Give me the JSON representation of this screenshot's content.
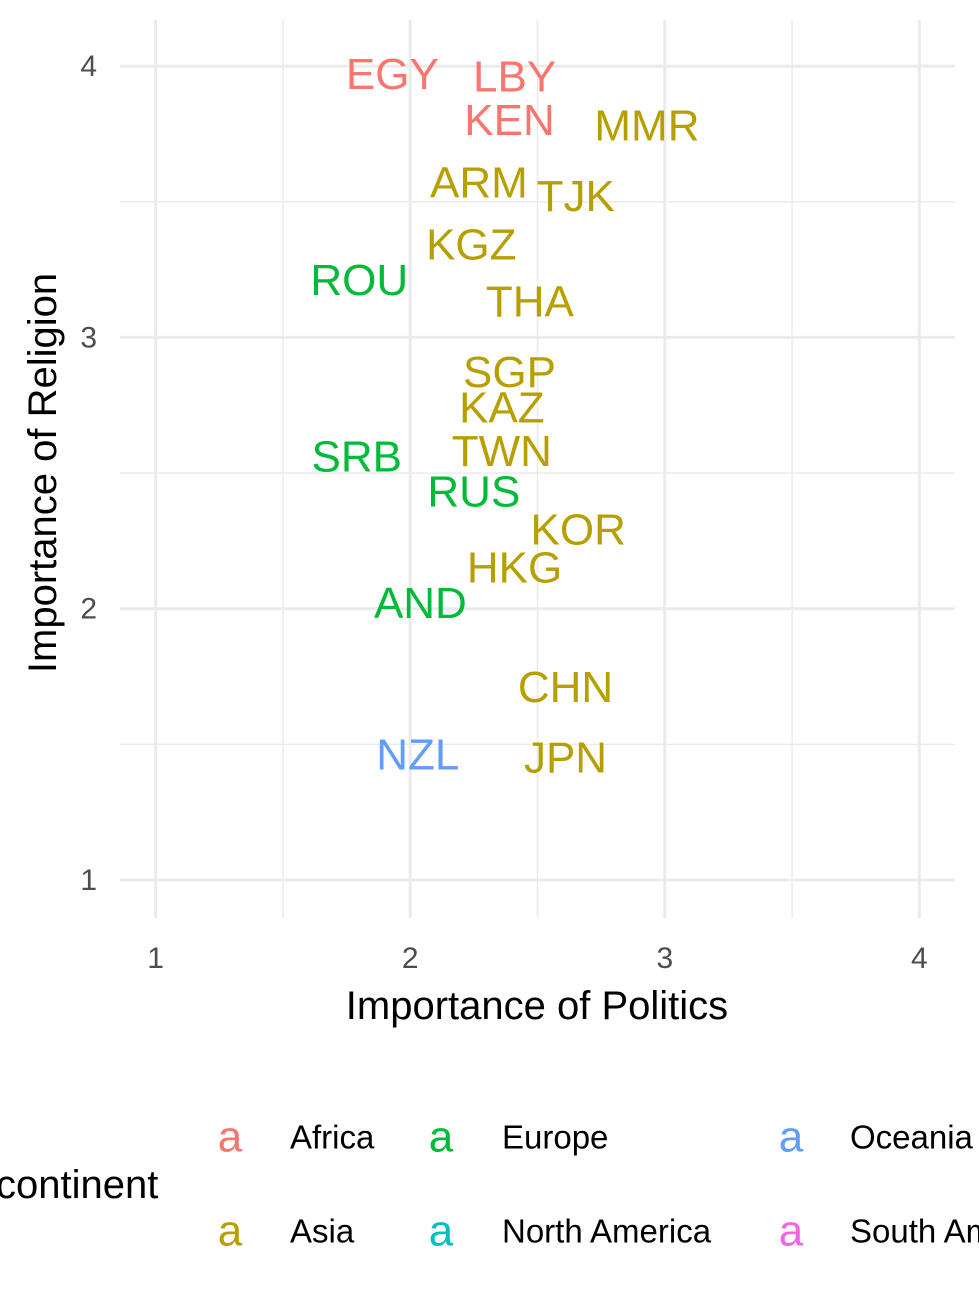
{
  "chart_data": {
    "type": "scatter",
    "xlabel": "Importance of Politics",
    "ylabel": "Importance of Religion",
    "xlim": [
      0.86,
      4.14
    ],
    "ylim": [
      0.86,
      4.17
    ],
    "x_ticks": [
      1,
      2,
      3,
      4
    ],
    "y_ticks": [
      1,
      2,
      3,
      4
    ],
    "grid": true,
    "legend": {
      "title": "continent",
      "placement": "bottom",
      "key_glyph": "a",
      "entries": [
        {
          "name": "Africa",
          "color": "#F8766D"
        },
        {
          "name": "Asia",
          "color": "#B79F00"
        },
        {
          "name": "Europe",
          "color": "#00BA38"
        },
        {
          "name": "North America",
          "color": "#00BFC4"
        },
        {
          "name": "Oceania",
          "color": "#619CFF"
        },
        {
          "name": "South America",
          "color": "#F564E3"
        }
      ]
    },
    "points": [
      {
        "label": "EGY",
        "continent": "Africa",
        "x": 1.93,
        "y": 3.97
      },
      {
        "label": "LBY",
        "continent": "Africa",
        "x": 2.41,
        "y": 3.96
      },
      {
        "label": "KEN",
        "continent": "Africa",
        "x": 2.39,
        "y": 3.8
      },
      {
        "label": "MMR",
        "continent": "Asia",
        "x": 2.93,
        "y": 3.78
      },
      {
        "label": "ARM",
        "continent": "Asia",
        "x": 2.27,
        "y": 3.57
      },
      {
        "label": "TJK",
        "continent": "Asia",
        "x": 2.65,
        "y": 3.52
      },
      {
        "label": "KGZ",
        "continent": "Asia",
        "x": 2.24,
        "y": 3.34
      },
      {
        "label": "ROU",
        "continent": "Europe",
        "x": 1.8,
        "y": 3.21
      },
      {
        "label": "THA",
        "continent": "Asia",
        "x": 2.47,
        "y": 3.13
      },
      {
        "label": "SGP",
        "continent": "Asia",
        "x": 2.39,
        "y": 2.87
      },
      {
        "label": "KAZ",
        "continent": "Asia",
        "x": 2.36,
        "y": 2.74
      },
      {
        "label": "TWN",
        "continent": "Asia",
        "x": 2.36,
        "y": 2.58
      },
      {
        "label": "SRB",
        "continent": "Europe",
        "x": 1.79,
        "y": 2.56
      },
      {
        "label": "RUS",
        "continent": "Europe",
        "x": 2.25,
        "y": 2.43
      },
      {
        "label": "KOR",
        "continent": "Asia",
        "x": 2.66,
        "y": 2.29
      },
      {
        "label": "HKG",
        "continent": "Asia",
        "x": 2.41,
        "y": 2.15
      },
      {
        "label": "AND",
        "continent": "Europe",
        "x": 2.04,
        "y": 2.02
      },
      {
        "label": "CHN",
        "continent": "Asia",
        "x": 2.61,
        "y": 1.71
      },
      {
        "label": "NZL",
        "continent": "Oceania",
        "x": 2.03,
        "y": 1.46
      },
      {
        "label": "JPN",
        "continent": "Asia",
        "x": 2.61,
        "y": 1.45
      }
    ]
  }
}
